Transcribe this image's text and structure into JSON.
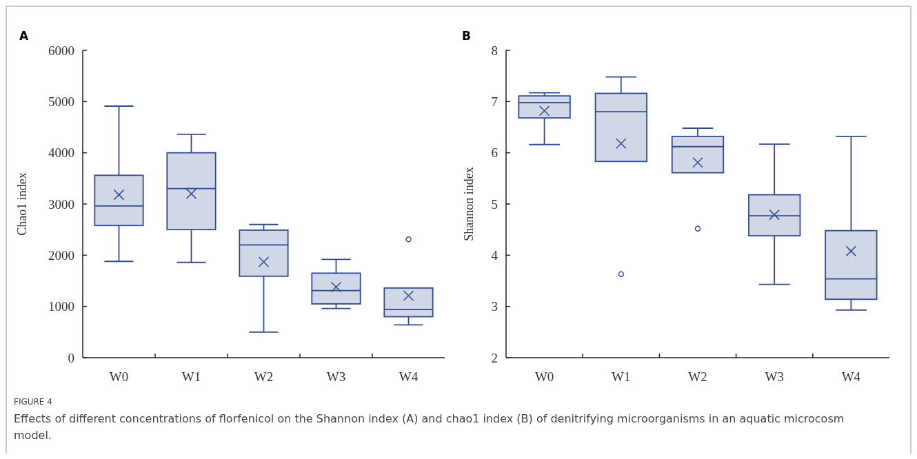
{
  "chart_data": [
    {
      "type": "box",
      "title": "A",
      "ylabel": "Chao1 index",
      "categories": [
        "W0",
        "W1",
        "W2",
        "W3",
        "W4"
      ],
      "ylim": [
        0,
        6000
      ],
      "yticks": [
        0,
        1000,
        2000,
        3000,
        4000,
        5000,
        6000
      ],
      "marker": "cross",
      "annotations": [
        "FIGURE 4",
        "Effects of different concentrations of florfenicol on the Shannon index (A) and chao1 index (B) of denitrifying microorganisms in an aquatic microcosm model."
      ],
      "series": [
        {
          "color": "#2f4a91",
          "boxes": [
            {
              "low": 1880,
              "q1": 2580,
              "median": 2960,
              "q3": 3560,
              "high": 4910,
              "mean": 3180
            },
            {
              "low": 1860,
              "q1": 2500,
              "median": 3300,
              "q3": 4000,
              "high": 4360,
              "mean": 3200
            },
            {
              "low": 500,
              "q1": 1590,
              "median": 2200,
              "q3": 2490,
              "high": 2600,
              "mean": 1870
            },
            {
              "low": 960,
              "q1": 1050,
              "median": 1310,
              "q3": 1650,
              "high": 1920,
              "mean": 1380
            },
            {
              "low": 640,
              "q1": 800,
              "median": 940,
              "q3": 1360,
              "high": 1360,
              "mean": 1210,
              "outliers": [
                2310
              ]
            }
          ]
        }
      ]
    },
    {
      "type": "box",
      "title": "B",
      "ylabel": "Shannon index",
      "categories": [
        "W0",
        "W1",
        "W2",
        "W3",
        "W4"
      ],
      "ylim": [
        2,
        8
      ],
      "yticks": [
        2,
        3,
        4,
        5,
        6,
        7,
        8
      ],
      "marker": "cross",
      "series": [
        {
          "color": "#2f4a91",
          "boxes": [
            {
              "low": 6.16,
              "q1": 6.68,
              "median": 6.98,
              "q3": 7.11,
              "high": 7.17,
              "mean": 6.82
            },
            {
              "low": 5.83,
              "q1": 5.83,
              "median": 6.8,
              "q3": 7.16,
              "high": 7.48,
              "mean": 6.18,
              "outliers": [
                3.63
              ]
            },
            {
              "low": 5.61,
              "q1": 5.61,
              "median": 6.12,
              "q3": 6.32,
              "high": 6.48,
              "mean": 5.81,
              "outliers": [
                4.52
              ]
            },
            {
              "low": 3.43,
              "q1": 4.38,
              "median": 4.77,
              "q3": 5.18,
              "high": 6.17,
              "mean": 4.79
            },
            {
              "low": 2.93,
              "q1": 3.14,
              "median": 3.54,
              "q3": 4.48,
              "high": 6.32,
              "mean": 4.08
            }
          ]
        }
      ]
    }
  ]
}
